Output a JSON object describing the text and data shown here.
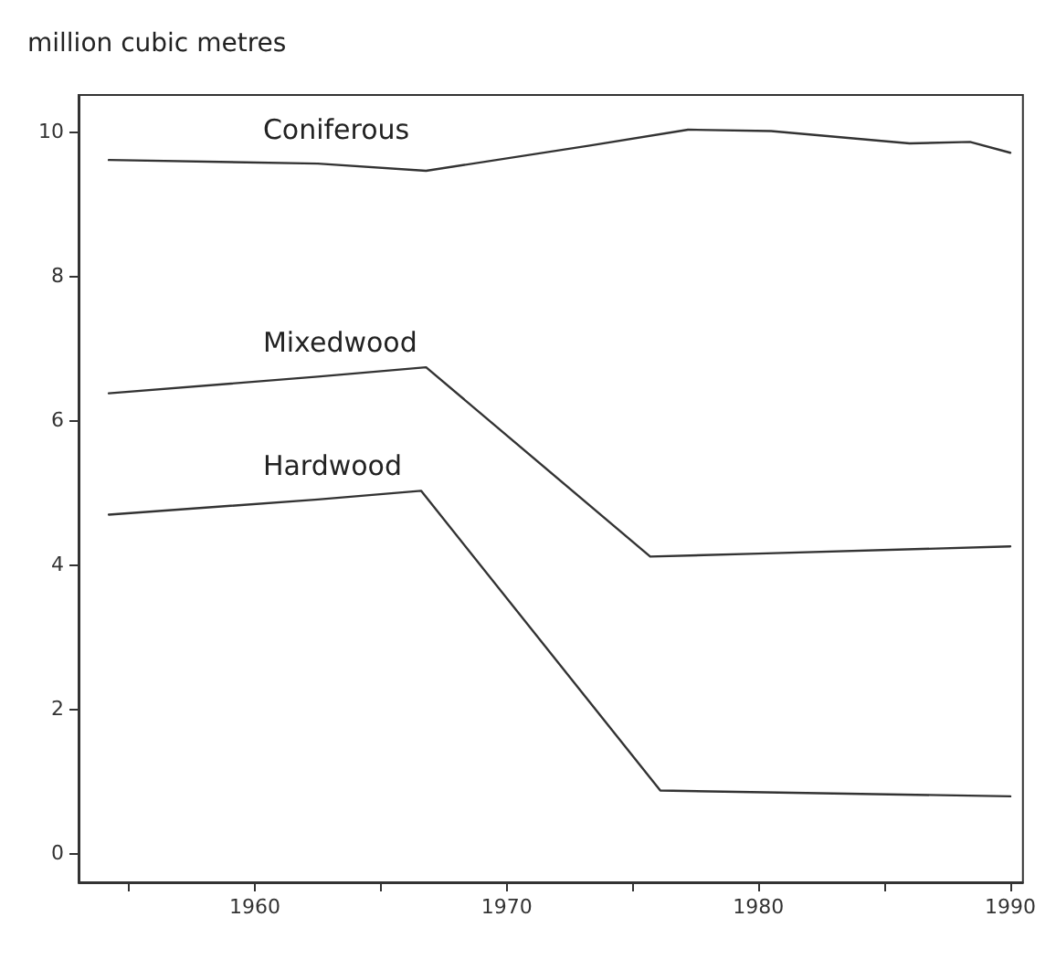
{
  "chart_data": {
    "type": "line",
    "ylabel": "million cubic metres",
    "xlim": [
      1953,
      1990.5
    ],
    "xticks": [
      {
        "value": 1955,
        "label": null
      },
      1960,
      {
        "value": 1965,
        "label": null
      },
      1970,
      {
        "value": 1975,
        "label": null
      },
      1980,
      {
        "value": 1985,
        "label": null
      },
      1990
    ],
    "ylim": [
      -0.4,
      10.5
    ],
    "yticks": [
      0,
      2,
      4,
      6,
      8,
      10
    ],
    "grid": false,
    "legend": false,
    "marker": "none",
    "line_style": "solid",
    "series": [
      {
        "name": "Coniferous",
        "color": "#333333",
        "x": [
          1954.2,
          1962.5,
          1966.8,
          1973.3,
          1977.2,
          1980.5,
          1986,
          1988.4,
          1990
        ],
        "values": [
          9.6,
          9.55,
          9.45,
          9.8,
          10.02,
          10,
          9.83,
          9.85,
          9.7
        ]
      },
      {
        "name": "Mixedwood",
        "color": "#333333",
        "x": [
          1954.2,
          1962.5,
          1966.8,
          1975.7,
          1980,
          1990
        ],
        "values": [
          6.37,
          6.6,
          6.73,
          4.11,
          4.15,
          4.25
        ]
      },
      {
        "name": "Hardwood",
        "color": "#333333",
        "x": [
          1954.2,
          1962.5,
          1966.6,
          1976.1,
          1990
        ],
        "values": [
          4.69,
          4.9,
          5.02,
          0.87,
          0.79
        ]
      }
    ]
  }
}
